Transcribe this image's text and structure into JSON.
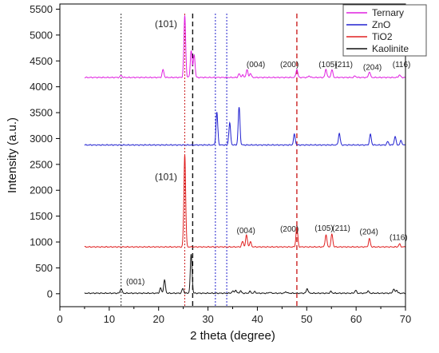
{
  "chart_data": {
    "type": "line",
    "xlabel": "2 theta (degree)",
    "ylabel": "Intensity (a.u.)",
    "xlim": [
      0,
      70
    ],
    "ylim": [
      -250,
      5600
    ],
    "xticks": [
      0,
      10,
      20,
      30,
      40,
      50,
      60,
      70
    ],
    "yticks": [
      0,
      500,
      1000,
      1500,
      2000,
      2500,
      3000,
      3500,
      4000,
      4500,
      5000,
      5500
    ],
    "legend_position": "top-right",
    "series": [
      {
        "name": "Ternary",
        "color": "#e020e0",
        "baseline": 4180,
        "peaks": [
          [
            12.4,
            4220
          ],
          [
            20.9,
            4330
          ],
          [
            25.3,
            5380
          ],
          [
            26.6,
            4700
          ],
          [
            27.2,
            4620
          ],
          [
            36.3,
            4250
          ],
          [
            37.0,
            4230
          ],
          [
            37.9,
            4330
          ],
          [
            38.6,
            4260
          ],
          [
            48.0,
            4340
          ],
          [
            50.5,
            4210
          ],
          [
            53.9,
            4340
          ],
          [
            55.1,
            4330
          ],
          [
            59.8,
            4210
          ],
          [
            62.7,
            4290
          ],
          [
            68.8,
            4230
          ]
        ]
      },
      {
        "name": "ZnO",
        "color": "#2020d0",
        "baseline": 2875,
        "peaks": [
          [
            31.8,
            3510
          ],
          [
            34.4,
            3300
          ],
          [
            36.3,
            3600
          ],
          [
            47.5,
            3080
          ],
          [
            56.6,
            3100
          ],
          [
            62.9,
            3080
          ],
          [
            66.4,
            2940
          ],
          [
            67.9,
            3040
          ],
          [
            69.1,
            2960
          ]
        ]
      },
      {
        "name": "TiO2",
        "color": "#e02020",
        "baseline": 905,
        "peaks": [
          [
            25.3,
            2700
          ],
          [
            37.0,
            1010
          ],
          [
            37.8,
            1130
          ],
          [
            38.6,
            1000
          ],
          [
            48.0,
            1300
          ],
          [
            53.9,
            1140
          ],
          [
            55.1,
            1150
          ],
          [
            62.7,
            1060
          ],
          [
            68.8,
            960
          ]
        ]
      },
      {
        "name": "Kaolinite",
        "color": "#111111",
        "baseline": 10,
        "peaks": [
          [
            12.4,
            100
          ],
          [
            20.4,
            110
          ],
          [
            21.2,
            260
          ],
          [
            24.9,
            100
          ],
          [
            26.6,
            760
          ],
          [
            35.0,
            50
          ],
          [
            35.6,
            70
          ],
          [
            36.6,
            55
          ],
          [
            38.5,
            45
          ],
          [
            39.5,
            40
          ],
          [
            42.5,
            30
          ],
          [
            45.8,
            40
          ],
          [
            50.1,
            100
          ],
          [
            54.9,
            45
          ],
          [
            59.9,
            65
          ],
          [
            62.4,
            55
          ],
          [
            67.6,
            90
          ],
          [
            68.2,
            70
          ]
        ]
      }
    ],
    "annotations": [
      {
        "text": "(101)",
        "x": 21.5,
        "y": 5150,
        "size": "large"
      },
      {
        "text": "(004)",
        "x": 39.7,
        "y": 4380,
        "size": "small"
      },
      {
        "text": "(200)",
        "x": 46.5,
        "y": 4380,
        "size": "small"
      },
      {
        "text": "(105)",
        "x": 54.3,
        "y": 4380,
        "size": "small"
      },
      {
        "text": "(211)",
        "x": 57.5,
        "y": 4380,
        "size": "small"
      },
      {
        "text": "(204)",
        "x": 63.3,
        "y": 4330,
        "size": "small"
      },
      {
        "text": "(116)",
        "x": 69.2,
        "y": 4380,
        "size": "small"
      },
      {
        "text": "(101)",
        "x": 21.5,
        "y": 2200,
        "size": "large"
      },
      {
        "text": "(004)",
        "x": 37.7,
        "y": 1170,
        "size": "small"
      },
      {
        "text": "(200)",
        "x": 46.5,
        "y": 1200,
        "size": "small"
      },
      {
        "text": "(105)",
        "x": 53.5,
        "y": 1220,
        "size": "small"
      },
      {
        "text": "(211)",
        "x": 57.0,
        "y": 1220,
        "size": "small"
      },
      {
        "text": "(204)",
        "x": 62.6,
        "y": 1150,
        "size": "small"
      },
      {
        "text": "(116)",
        "x": 68.6,
        "y": 1040,
        "size": "small"
      },
      {
        "text": "(001)",
        "x": 15.3,
        "y": 180,
        "size": "small"
      }
    ],
    "reference_lines": [
      {
        "x": 12.4,
        "color": "#333333",
        "dash": "dotted"
      },
      {
        "x": 25.3,
        "color": "#cc2222",
        "dash": "dotted"
      },
      {
        "x": 26.9,
        "color": "#111111",
        "dash": "dashed"
      },
      {
        "x": 31.5,
        "color": "#2222cc",
        "dash": "dotted"
      },
      {
        "x": 33.8,
        "color": "#2222cc",
        "dash": "dotted"
      },
      {
        "x": 48.0,
        "color": "#cc2222",
        "dash": "dashed"
      }
    ]
  }
}
